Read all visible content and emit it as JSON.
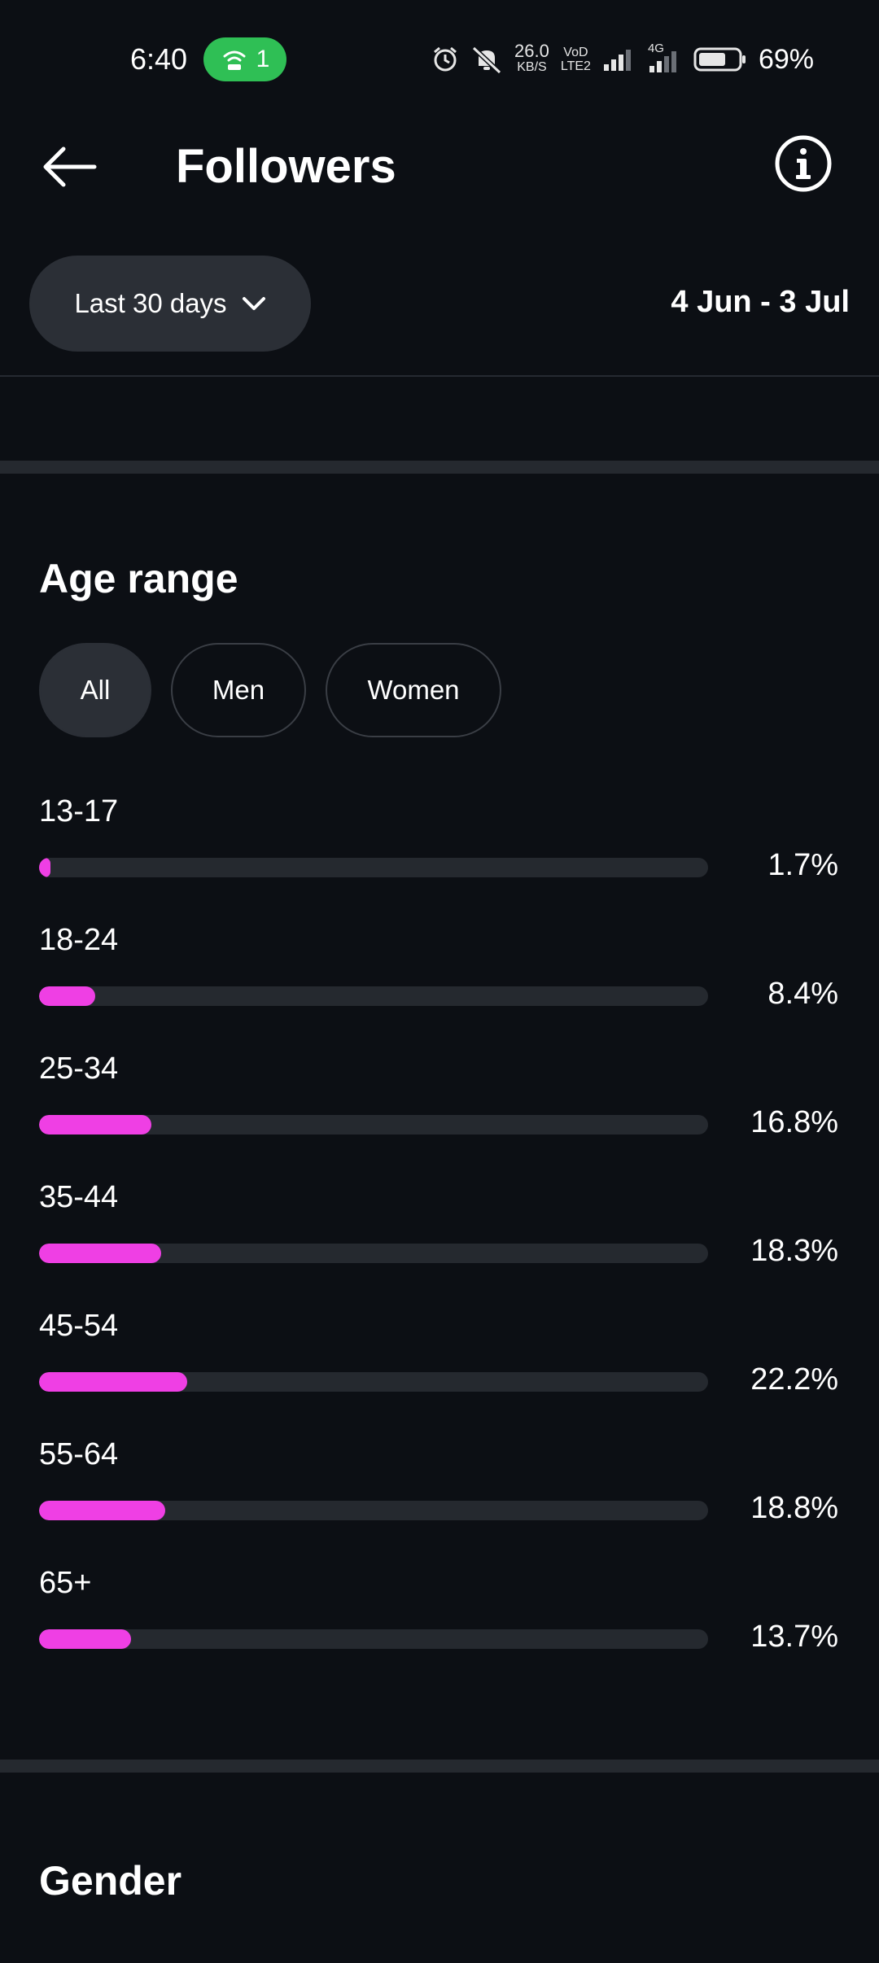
{
  "status_bar": {
    "time": "6:40",
    "hotspot_count": "1",
    "net_speed_value": "26.0",
    "net_speed_unit": "KB/S",
    "volte_top": "VoD",
    "volte_bottom": "LTE2",
    "network_type": "4G",
    "battery_percent": "69%",
    "icons": [
      "hotspot-icon",
      "alarm-icon",
      "mute-icon",
      "signal-icon",
      "battery-icon"
    ],
    "hotspot_color": "#2fbf55"
  },
  "header": {
    "title": "Followers",
    "back_icon": "arrow-left-icon",
    "info_icon": "info-icon"
  },
  "filter": {
    "range_label": "Last 30 days",
    "date_range": "4 Jun - 3 Jul"
  },
  "age_range": {
    "title": "Age range",
    "segments": [
      "All",
      "Men",
      "Women"
    ],
    "selected_segment": "All",
    "bar_color": "#ef3fe4",
    "rows": [
      {
        "label": "13-17",
        "value": "1.7%",
        "fill_percent": 1.7
      },
      {
        "label": "18-24",
        "value": "8.4%",
        "fill_percent": 8.4
      },
      {
        "label": "25-34",
        "value": "16.8%",
        "fill_percent": 16.8
      },
      {
        "label": "35-44",
        "value": "18.3%",
        "fill_percent": 18.3
      },
      {
        "label": "45-54",
        "value": "22.2%",
        "fill_percent": 22.2
      },
      {
        "label": "55-64",
        "value": "18.8%",
        "fill_percent": 18.8
      },
      {
        "label": "65+",
        "value": "13.7%",
        "fill_percent": 13.7
      }
    ]
  },
  "gender": {
    "title": "Gender"
  }
}
